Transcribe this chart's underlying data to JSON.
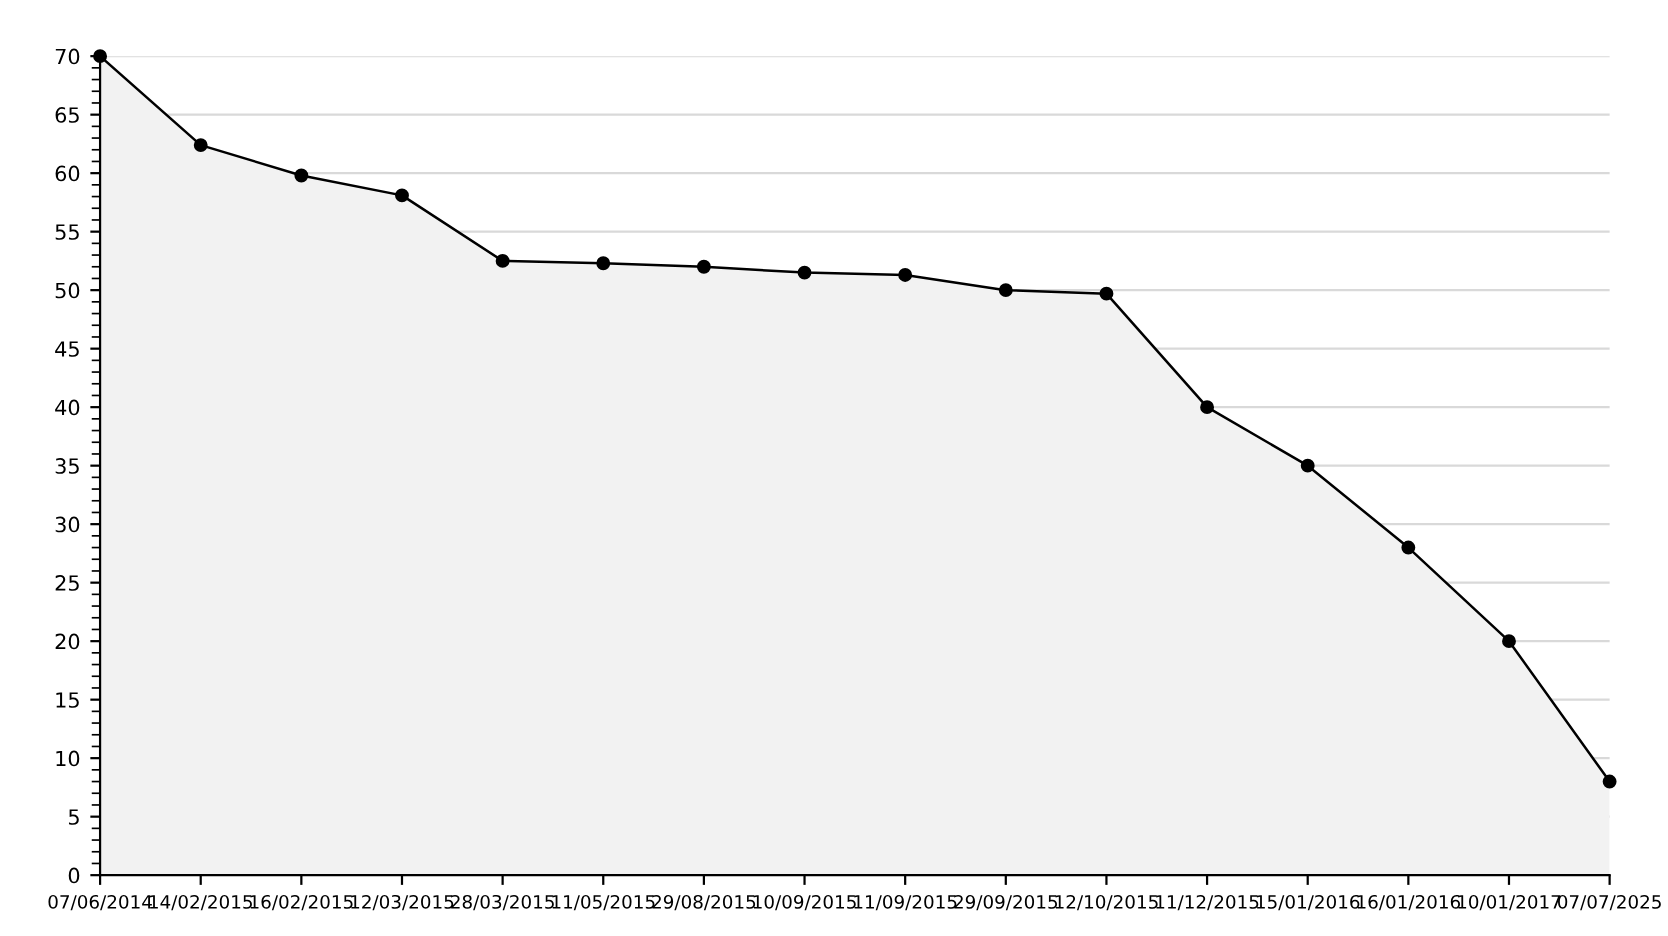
{
  "chart_data": {
    "type": "area",
    "categories": [
      "07/06/2014",
      "14/02/2015",
      "16/02/2015",
      "12/03/2015",
      "28/03/2015",
      "11/05/2015",
      "29/08/2015",
      "10/09/2015",
      "11/09/2015",
      "29/09/2015",
      "12/10/2015",
      "11/12/2015",
      "15/01/2016",
      "16/01/2016",
      "10/01/2017",
      "07/07/2025"
    ],
    "series": [
      {
        "color": "#000000",
        "values": [
          70,
          62.4,
          59.8,
          58.1,
          52.5,
          52.3,
          52.0,
          51.5,
          51.3,
          50.0,
          49.7,
          40.0,
          35.0,
          28.0,
          20.0,
          8.0
        ]
      }
    ],
    "ylim": [
      0,
      70
    ],
    "yticks": [
      0,
      5,
      10,
      15,
      20,
      25,
      30,
      35,
      40,
      45,
      50,
      55,
      60,
      65,
      70
    ],
    "grid": "y",
    "marker": "circle",
    "line_style": "solid"
  }
}
